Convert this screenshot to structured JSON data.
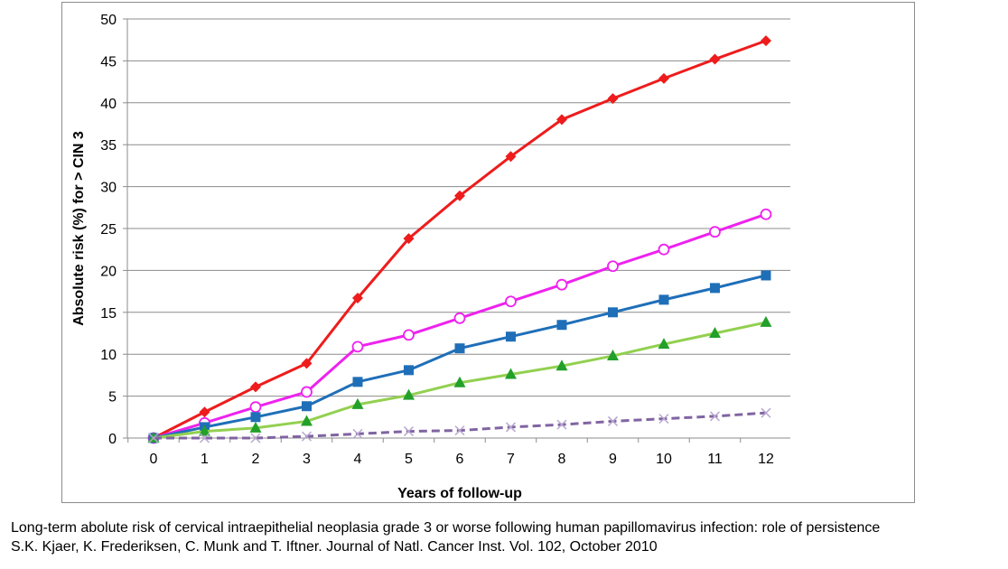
{
  "chart_data": {
    "type": "line",
    "title": "",
    "xlabel": "Years of follow-up",
    "ylabel": "Absolute risk (%) for > CIN 3",
    "x": [
      0,
      1,
      2,
      3,
      4,
      5,
      6,
      7,
      8,
      9,
      10,
      11,
      12
    ],
    "xlim": [
      0,
      12
    ],
    "ylim": [
      0,
      50
    ],
    "yticks": [
      0,
      5,
      10,
      15,
      20,
      25,
      30,
      35,
      40,
      45,
      50
    ],
    "grid": "horizontal",
    "legend": "none",
    "series": [
      {
        "color": "#ee1c1c",
        "marker": "diamond",
        "dash": false,
        "values": [
          0,
          3.1,
          6.1,
          8.9,
          16.7,
          23.8,
          28.9,
          33.6,
          38.0,
          40.5,
          42.9,
          45.2,
          47.4
        ]
      },
      {
        "color": "#ee22ee",
        "marker": "circle-open",
        "dash": false,
        "values": [
          0,
          1.8,
          3.7,
          5.5,
          10.9,
          12.3,
          14.3,
          16.3,
          18.3,
          20.5,
          22.5,
          24.6,
          26.7
        ]
      },
      {
        "color": "#1f6fb8",
        "marker": "square",
        "dash": false,
        "values": [
          0,
          1.3,
          2.5,
          3.8,
          6.7,
          8.1,
          10.7,
          12.1,
          13.5,
          15.0,
          16.5,
          17.9,
          19.4
        ]
      },
      {
        "color": "#92d050",
        "marker": "triangle",
        "marker_color": "#22a02a",
        "dash": false,
        "values": [
          0,
          0.8,
          1.2,
          2.0,
          4.0,
          5.1,
          6.6,
          7.6,
          8.6,
          9.8,
          11.2,
          12.5,
          13.8
        ]
      },
      {
        "color": "#8064a2",
        "marker": "x",
        "marker_color": "#b9a7cf",
        "dash": true,
        "values": [
          0,
          0.0,
          0.0,
          0.2,
          0.5,
          0.8,
          0.9,
          1.3,
          1.6,
          2.0,
          2.3,
          2.6,
          3.0
        ]
      }
    ]
  },
  "caption": {
    "line1": "Long-term abolute risk of cervical intraepithelial neoplasia grade 3 or worse following human papillomavirus infection: role of persistence",
    "line2": "S.K. Kjaer, K. Frederiksen, C. Munk and T. Iftner. Journal of Natl. Cancer Inst. Vol. 102, October 2010"
  }
}
